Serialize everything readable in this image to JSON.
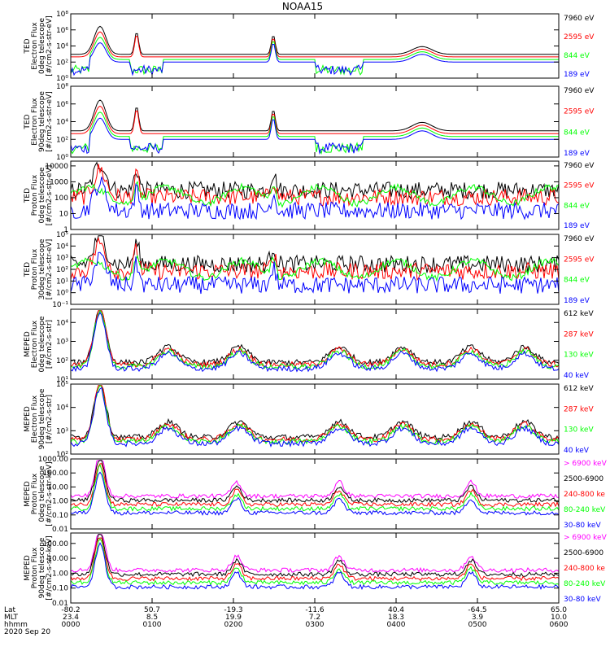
{
  "title": "NOAA15",
  "date": "2020 Sep 20",
  "colors": {
    "black": "#000000",
    "red": "#ff0000",
    "green": "#00ff00",
    "blue": "#0000ff",
    "magenta": "#ff00ff"
  },
  "footer": {
    "row_labels": [
      "Lat",
      "MLT",
      "hhmm"
    ],
    "columns": [
      {
        "lat": "-80.2",
        "mlt": "23.4",
        "time": "0000"
      },
      {
        "lat": "50.7",
        "mlt": "8.5",
        "time": "0100"
      },
      {
        "lat": "-19.3",
        "mlt": "19.9",
        "time": "0200"
      },
      {
        "lat": "-11.6",
        "mlt": "7.2",
        "time": "0300"
      },
      {
        "lat": "40.4",
        "mlt": "18.3",
        "time": "0400"
      },
      {
        "lat": "-64.5",
        "mlt": "3.9",
        "time": "0500"
      },
      {
        "lat": "65.0",
        "mlt": "10.0",
        "time": "0600"
      }
    ]
  },
  "chart_data": [
    {
      "type": "line",
      "scale": "log",
      "ylabel": [
        "TED",
        "Electron Flux",
        "0deg telescope",
        "[#/cm2-s-str-eV]"
      ],
      "ticks": [
        "10⁰",
        "10²",
        "10⁴",
        "10⁶",
        "10⁸"
      ],
      "tick_values": [
        1,
        100,
        10000,
        1000000,
        100000000
      ],
      "ylim": [
        1,
        100000000
      ],
      "series": [
        {
          "name": "7960 eV",
          "color": "#000000"
        },
        {
          "name": "2595 eV",
          "color": "#ff0000"
        },
        {
          "name": "844 eV",
          "color": "#00ff00"
        },
        {
          "name": "189 eV",
          "color": "#0000ff"
        }
      ]
    },
    {
      "type": "line",
      "scale": "log",
      "ylabel": [
        "TED",
        "Electron Flux",
        "90deg telescope",
        "[#/cm2-s-str-eV]"
      ],
      "ticks": [
        "10⁰",
        "10²",
        "10⁴",
        "10⁶",
        "10⁸"
      ],
      "tick_values": [
        1,
        100,
        10000,
        1000000,
        100000000
      ],
      "ylim": [
        1,
        100000000
      ],
      "series": [
        {
          "name": "7960 eV",
          "color": "#000000"
        },
        {
          "name": "2595 eV",
          "color": "#ff0000"
        },
        {
          "name": "844 eV",
          "color": "#00ff00"
        },
        {
          "name": "189 eV",
          "color": "#0000ff"
        }
      ]
    },
    {
      "type": "line",
      "scale": "log",
      "ylabel": [
        "TED",
        "Proton Flux",
        "0deg telescope",
        "[#/cm2-s-str-eV]"
      ],
      "ticks": [
        "1",
        "10",
        "100",
        "1000",
        "10000"
      ],
      "tick_values": [
        1,
        10,
        100,
        1000,
        10000
      ],
      "ylim": [
        1,
        20000
      ],
      "series": [
        {
          "name": "7960 eV",
          "color": "#000000"
        },
        {
          "name": "2595 eV",
          "color": "#ff0000"
        },
        {
          "name": "844 eV",
          "color": "#00ff00"
        },
        {
          "name": "189 eV",
          "color": "#0000ff"
        }
      ]
    },
    {
      "type": "line",
      "scale": "log",
      "ylabel": [
        "TED",
        "Proton Flux",
        "30deg telescope",
        "[#/cm2-s-str-eV]"
      ],
      "ticks": [
        "10⁻¹",
        "10⁰",
        "10¹",
        "10²",
        "10³",
        "10⁴",
        "10⁵"
      ],
      "tick_values": [
        0.1,
        1,
        10,
        100,
        1000,
        10000,
        100000
      ],
      "ylim": [
        0.1,
        100000
      ],
      "series": [
        {
          "name": "7960 eV",
          "color": "#000000"
        },
        {
          "name": "2595 eV",
          "color": "#ff0000"
        },
        {
          "name": "844 eV",
          "color": "#00ff00"
        },
        {
          "name": "189 eV",
          "color": "#0000ff"
        }
      ]
    },
    {
      "type": "line",
      "scale": "log",
      "ylabel": [
        "MEPED",
        "Electron Flux",
        "0deg telescope",
        "[#/cm2-s-str]"
      ],
      "ticks": [
        "10¹",
        "10²",
        "10³",
        "10⁴"
      ],
      "tick_values": [
        10,
        100,
        1000,
        10000
      ],
      "ylim": [
        10,
        50000
      ],
      "series": [
        {
          "name": "612 keV",
          "color": "#000000"
        },
        {
          "name": "287 keV",
          "color": "#ff0000"
        },
        {
          "name": "130 keV",
          "color": "#00ff00"
        },
        {
          "name": "40 keV",
          "color": "#0000ff"
        }
      ]
    },
    {
      "type": "line",
      "scale": "log",
      "ylabel": [
        "MEPED",
        "Electron Flux",
        "90deg telescope",
        "[#/cm2-s-str]"
      ],
      "ticks": [
        "10²",
        "10³",
        "10⁴",
        "10⁵"
      ],
      "tick_values": [
        100,
        1000,
        10000,
        100000
      ],
      "ylim": [
        100,
        100000
      ],
      "series": [
        {
          "name": "612 keV",
          "color": "#000000"
        },
        {
          "name": "287 keV",
          "color": "#ff0000"
        },
        {
          "name": "130 keV",
          "color": "#00ff00"
        },
        {
          "name": "40 keV",
          "color": "#0000ff"
        }
      ]
    },
    {
      "type": "line",
      "scale": "log",
      "ylabel": [
        "MEPED",
        "Proton Flux",
        "0deg telescope",
        "[#/cm2-s-str-keV]"
      ],
      "ticks": [
        "0.01",
        "0.10",
        "1.00",
        "10.00",
        "100.00",
        "1000.00"
      ],
      "tick_values": [
        0.01,
        0.1,
        1,
        10,
        100,
        1000
      ],
      "ylim": [
        0.01,
        1000
      ],
      "series": [
        {
          "name": "> 6900 keV",
          "color": "#ff00ff"
        },
        {
          "name": "2500-6900",
          "color": "#000000"
        },
        {
          "name": "240-800 ke",
          "color": "#ff0000"
        },
        {
          "name": "80-240 keV",
          "color": "#00ff00"
        },
        {
          "name": "30-80 keV",
          "color": "#0000ff"
        }
      ]
    },
    {
      "type": "line",
      "scale": "log",
      "ylabel": [
        "MEPED",
        "Proton Flux",
        "90deg telescope",
        "[#/cm2-s-str-keV]"
      ],
      "ticks": [
        "0.01",
        "0.10",
        "1.00",
        "10.00",
        "100.00"
      ],
      "tick_values": [
        0.01,
        0.1,
        1,
        10,
        100
      ],
      "ylim": [
        0.01,
        500
      ],
      "series": [
        {
          "name": "> 6900 keV",
          "color": "#ff00ff"
        },
        {
          "name": "2500-6900",
          "color": "#000000"
        },
        {
          "name": "240-800 ke",
          "color": "#ff0000"
        },
        {
          "name": "80-240 keV",
          "color": "#00ff00"
        },
        {
          "name": "30-80 keV",
          "color": "#0000ff"
        }
      ]
    }
  ]
}
